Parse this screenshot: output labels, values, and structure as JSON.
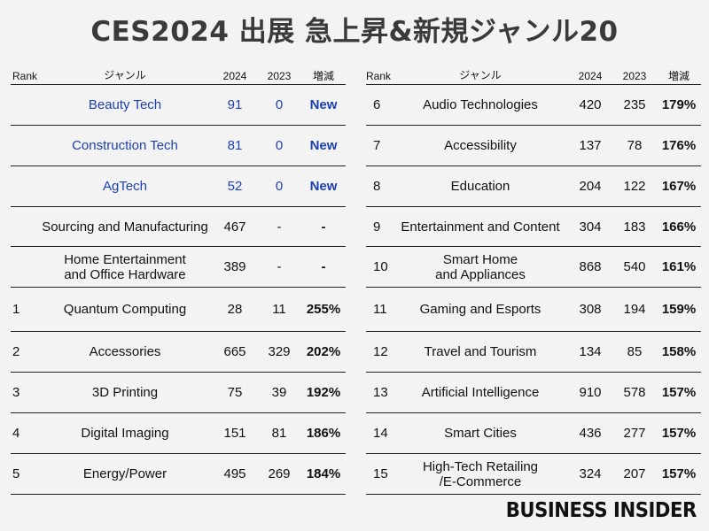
{
  "title": "CES2024 出展 急上昇&新規ジャンル20",
  "headers": {
    "rank": "Rank",
    "genre": "ジャンル",
    "y2024": "2024",
    "y2023": "2023",
    "diff": "増減"
  },
  "left_rows": [
    {
      "rank": "",
      "genre": "Beauty Tech",
      "y2024": "91",
      "y2023": "0",
      "diff": "New",
      "is_new": true
    },
    {
      "rank": "",
      "genre": "Construction Tech",
      "y2024": "81",
      "y2023": "0",
      "diff": "New",
      "is_new": true
    },
    {
      "rank": "",
      "genre": "AgTech",
      "y2024": "52",
      "y2023": "0",
      "diff": "New",
      "is_new": true
    },
    {
      "rank": "",
      "genre": "Sourcing and Manufacturing",
      "y2024": "467",
      "y2023": "-",
      "diff": "-",
      "is_new": false
    },
    {
      "rank": "",
      "genre": "Home Entertainment\nand Office Hardware",
      "y2024": "389",
      "y2023": "-",
      "diff": "-",
      "is_new": false
    },
    {
      "rank": "1",
      "genre": "Quantum Computing",
      "y2024": "28",
      "y2023": "11",
      "diff": "255%",
      "is_new": false
    },
    {
      "rank": "2",
      "genre": "Accessories",
      "y2024": "665",
      "y2023": "329",
      "diff": "202%",
      "is_new": false
    },
    {
      "rank": "3",
      "genre": "3D Printing",
      "y2024": "75",
      "y2023": "39",
      "diff": "192%",
      "is_new": false
    },
    {
      "rank": "4",
      "genre": "Digital Imaging",
      "y2024": "151",
      "y2023": "81",
      "diff": "186%",
      "is_new": false
    },
    {
      "rank": "5",
      "genre": "Energy/Power",
      "y2024": "495",
      "y2023": "269",
      "diff": "184%",
      "is_new": false
    }
  ],
  "right_rows": [
    {
      "rank": "6",
      "genre": "Audio Technologies",
      "y2024": "420",
      "y2023": "235",
      "diff": "179%"
    },
    {
      "rank": "7",
      "genre": "Accessibility",
      "y2024": "137",
      "y2023": "78",
      "diff": "176%"
    },
    {
      "rank": "8",
      "genre": "Education",
      "y2024": "204",
      "y2023": "122",
      "diff": "167%"
    },
    {
      "rank": "9",
      "genre": "Entertainment and Content",
      "y2024": "304",
      "y2023": "183",
      "diff": "166%"
    },
    {
      "rank": "10",
      "genre": "Smart Home\nand Appliances",
      "y2024": "868",
      "y2023": "540",
      "diff": "161%"
    },
    {
      "rank": "11",
      "genre": "Gaming and Esports",
      "y2024": "308",
      "y2023": "194",
      "diff": "159%"
    },
    {
      "rank": "12",
      "genre": "Travel and Tourism",
      "y2024": "134",
      "y2023": "85",
      "diff": "158%"
    },
    {
      "rank": "13",
      "genre": "Artificial Intelligence",
      "y2024": "910",
      "y2023": "578",
      "diff": "157%"
    },
    {
      "rank": "14",
      "genre": "Smart Cities",
      "y2024": "436",
      "y2023": "277",
      "diff": "157%"
    },
    {
      "rank": "15",
      "genre": "High-Tech Retailing\n/E-Commerce",
      "y2024": "324",
      "y2023": "207",
      "diff": "157%"
    }
  ],
  "colors": {
    "new_accent": "#1c3fb0",
    "title": "#3a3a3a",
    "background": "#f3f3f3"
  },
  "brand": "BUSINESS INSIDER"
}
